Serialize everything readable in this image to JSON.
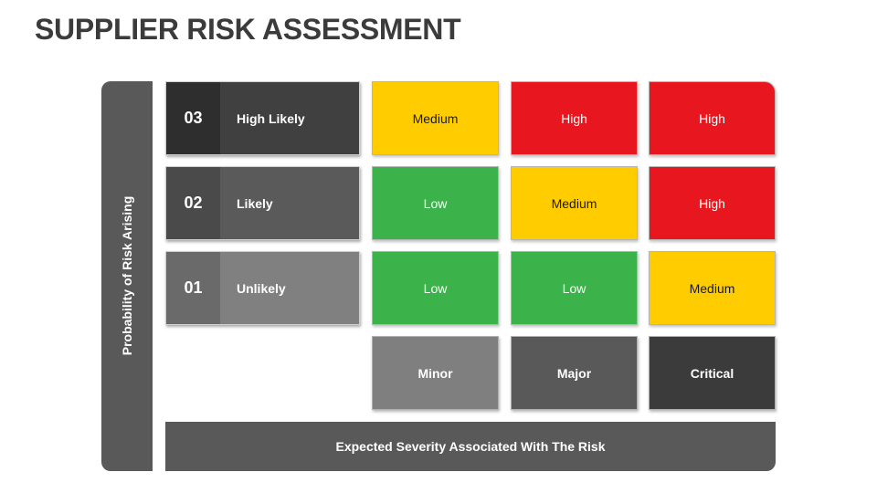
{
  "title": "SUPPLIER RISK ASSESSMENT",
  "y_axis_label": "Probability of Risk Arising",
  "x_axis_label": "Expected Severity Associated With The Risk",
  "probability_rows": [
    {
      "number": "03",
      "label": "High Likely",
      "num_color": "#2e2e2e",
      "label_color": "#404040"
    },
    {
      "number": "02",
      "label": "Likely",
      "num_color": "#4a4a4a",
      "label_color": "#5a5a5a"
    },
    {
      "number": "01",
      "label": "Unlikely",
      "num_color": "#6a6a6a",
      "label_color": "#808080"
    }
  ],
  "matrix": [
    [
      "Medium",
      "High",
      "High"
    ],
    [
      "Low",
      "Medium",
      "High"
    ],
    [
      "Low",
      "Low",
      "Medium"
    ]
  ],
  "severity_levels": [
    {
      "label": "Minor",
      "color": "#7f7f7f"
    },
    {
      "label": "Major",
      "color": "#595959"
    },
    {
      "label": "Critical",
      "color": "#3b3b3b"
    }
  ],
  "level_colors": {
    "Low": "#3bb34a",
    "Medium": "#ffcc00",
    "High": "#e8161e"
  }
}
